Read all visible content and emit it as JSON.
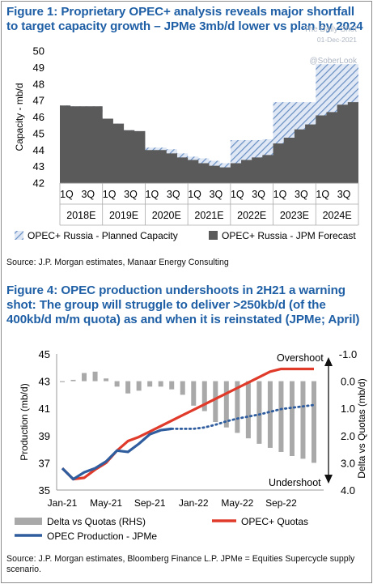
{
  "watermark": {
    "brand": "The Daily Shot",
    "date": "01-Dec-2021",
    "handle": "@SoberLook"
  },
  "figure1": {
    "title": "Figure 1: Proprietary OPEC+ analysis reveals major shortfall to target capacity growth – JPMe 3mb/d lower vs plan by 2024",
    "source": "Source: J.P. Morgan estimates, Manaar Energy Consulting"
  },
  "figure4": {
    "title": "Figure 4: OPEC production undershoots in 2H21 a warning shot: The group will struggle to deliver >250kb/d (of the 400kb/d m/m quota) as and when it is reinstated (JPMe; April)",
    "source": "Source: J.P. Morgan estimates, Bloomberg Finance L.P. JPMe = Equities Supercycle supply scenario.",
    "annotation_overshoot": "Overshoot",
    "annotation_undershoot": "Undershoot"
  },
  "chart_data": [
    {
      "type": "area",
      "ylabel": "Capacity - mb/d",
      "ylim": [
        42,
        50
      ],
      "yticks": [
        "42",
        "43",
        "44",
        "45",
        "46",
        "47",
        "48",
        "49",
        "50"
      ],
      "quarter_labels": [
        "1Q",
        "3Q",
        "1Q",
        "3Q",
        "1Q",
        "3Q",
        "1Q",
        "3Q",
        "1Q",
        "3Q",
        "1Q",
        "3Q",
        "1Q",
        "3Q"
      ],
      "year_labels": [
        "2018E",
        "2019E",
        "2020E",
        "2021E",
        "2022E",
        "2023E",
        "2024E"
      ],
      "grid": false,
      "legend_position": "bottom",
      "series": [
        {
          "name": "OPEC+ Russia - Planned Capacity",
          "color": "#6a8fc4",
          "style": "hatched",
          "values": [
            46.7,
            46.65,
            46.65,
            46.65,
            45.9,
            45.6,
            45.2,
            45.15,
            44.15,
            44.15,
            44.05,
            43.8,
            43.6,
            43.5,
            43.35,
            43.2,
            44.6,
            44.6,
            44.6,
            44.65,
            46.9,
            46.9,
            46.9,
            46.9,
            49.2,
            49.2,
            49.2,
            49.2
          ]
        },
        {
          "name": "OPEC+ Russia - JPM Forecast",
          "color": "#5a5a5a",
          "style": "solid",
          "values": [
            46.7,
            46.65,
            46.65,
            46.65,
            45.9,
            45.6,
            45.2,
            45.15,
            44.0,
            44.0,
            43.8,
            43.55,
            43.4,
            43.2,
            43.05,
            42.95,
            43.2,
            43.4,
            43.55,
            43.7,
            44.4,
            44.75,
            45.25,
            45.55,
            46.1,
            46.3,
            46.75,
            46.9
          ]
        }
      ]
    },
    {
      "type": "line",
      "ylabel": "Production (mb/d)",
      "y2label": "Delta vs Quotas (mb/d)",
      "ylim": [
        35,
        45
      ],
      "yticks": [
        "35",
        "37",
        "39",
        "41",
        "43",
        "45"
      ],
      "y2lim": [
        -1.0,
        4.0
      ],
      "y2_inverted": true,
      "y2ticks": [
        "-1.0",
        "0.0",
        "1.0",
        "2.0",
        "3.0",
        "4.0"
      ],
      "xticks": [
        "Jan-21",
        "May-21",
        "Sep-21",
        "Jan-22",
        "May-22",
        "Sep-22"
      ],
      "grid": false,
      "legend_position": "bottom",
      "series": [
        {
          "name": "Delta vs Quotas (RHS)",
          "color": "#a9a9a9",
          "axis": "right",
          "chart_kind": "bar",
          "x": [
            "Jan-21",
            "Feb-21",
            "Mar-21",
            "Apr-21",
            "May-21",
            "Jun-21",
            "Jul-21",
            "Aug-21",
            "Sep-21",
            "Oct-21",
            "Nov-21",
            "Dec-21",
            "Jan-22",
            "Feb-22",
            "Mar-22",
            "Apr-22",
            "May-22",
            "Jun-22",
            "Jul-22",
            "Aug-22",
            "Sep-22",
            "Oct-22",
            "Nov-22",
            "Dec-22"
          ],
          "values": [
            0.0,
            -0.05,
            -0.3,
            -0.35,
            -0.1,
            0.2,
            0.45,
            0.35,
            0.2,
            0.2,
            0.3,
            0.5,
            0.9,
            1.1,
            1.5,
            1.7,
            1.9,
            2.1,
            2.3,
            2.45,
            2.6,
            2.75,
            2.85,
            3.0
          ]
        },
        {
          "name": "OPEC+ Quotas",
          "color": "#e03a2a",
          "x": [
            "Jan-21",
            "Feb-21",
            "Mar-21",
            "Apr-21",
            "May-21",
            "Jun-21",
            "Jul-21",
            "Aug-21",
            "Sep-21",
            "Oct-21",
            "Nov-21",
            "Dec-21",
            "Jan-22",
            "Feb-22",
            "Mar-22",
            "Apr-22",
            "May-22",
            "Jun-22",
            "Jul-22",
            "Aug-22",
            "Sep-22",
            "Oct-22",
            "Nov-22",
            "Dec-22"
          ],
          "values": [
            36.6,
            35.8,
            35.9,
            36.5,
            37.0,
            37.9,
            38.6,
            38.9,
            39.3,
            39.7,
            40.1,
            40.5,
            40.9,
            41.3,
            41.7,
            42.1,
            42.5,
            42.9,
            43.3,
            43.7,
            43.9,
            43.9,
            43.9,
            43.9
          ]
        },
        {
          "name": "OPEC Production - JPMe",
          "color": "#2f5d9e",
          "x": [
            "Jan-21",
            "Feb-21",
            "Mar-21",
            "Apr-21",
            "May-21",
            "Jun-21",
            "Jul-21",
            "Aug-21",
            "Sep-21",
            "Oct-21",
            "Nov-21"
          ],
          "values": [
            36.6,
            35.8,
            36.3,
            36.6,
            37.1,
            37.9,
            37.8,
            38.4,
            39.1,
            39.4,
            39.5
          ]
        },
        {
          "name": "OPEC Production - JPMe (projection)",
          "color": "#2f5d9e",
          "style": "dotted",
          "x": [
            "Nov-21",
            "Dec-21",
            "Jan-22",
            "Feb-22",
            "Mar-22",
            "Apr-22",
            "May-22",
            "Jun-22",
            "Jul-22",
            "Aug-22",
            "Sep-22",
            "Oct-22",
            "Nov-22",
            "Dec-22"
          ],
          "values": [
            39.5,
            39.5,
            39.5,
            39.6,
            39.8,
            40.05,
            40.25,
            40.4,
            40.55,
            40.75,
            40.95,
            41.05,
            41.15,
            41.25
          ]
        }
      ]
    }
  ]
}
